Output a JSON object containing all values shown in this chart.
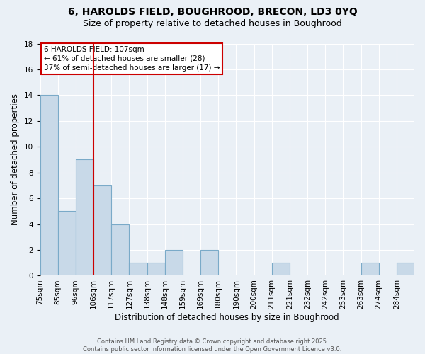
{
  "title_line1": "6, HAROLDS FIELD, BOUGHROOD, BRECON, LD3 0YQ",
  "title_line2": "Size of property relative to detached houses in Boughrood",
  "xlabel": "Distribution of detached houses by size in Boughrood",
  "ylabel": "Number of detached properties",
  "bin_labels": [
    "75sqm",
    "85sqm",
    "96sqm",
    "106sqm",
    "117sqm",
    "127sqm",
    "138sqm",
    "148sqm",
    "159sqm",
    "169sqm",
    "180sqm",
    "190sqm",
    "200sqm",
    "211sqm",
    "221sqm",
    "232sqm",
    "242sqm",
    "253sqm",
    "263sqm",
    "274sqm",
    "284sqm"
  ],
  "counts": [
    14,
    5,
    9,
    7,
    4,
    1,
    1,
    2,
    0,
    2,
    0,
    0,
    0,
    1,
    0,
    0,
    0,
    0,
    1,
    0,
    1
  ],
  "bar_color": "#c8d9e8",
  "bar_edge_color": "#7aaac8",
  "red_line_bin_index": 3,
  "annotation_text": "6 HAROLDS FIELD: 107sqm\n← 61% of detached houses are smaller (28)\n37% of semi-detached houses are larger (17) →",
  "annotation_box_color": "#ffffff",
  "annotation_border_color": "#cc0000",
  "ylim": [
    0,
    18
  ],
  "yticks": [
    0,
    2,
    4,
    6,
    8,
    10,
    12,
    14,
    16,
    18
  ],
  "background_color": "#eaf0f6",
  "grid_color": "#ffffff",
  "footer_text": "Contains HM Land Registry data © Crown copyright and database right 2025.\nContains public sector information licensed under the Open Government Licence v3.0.",
  "title_fontsize": 10,
  "subtitle_fontsize": 9,
  "xlabel_fontsize": 8.5,
  "ylabel_fontsize": 8.5,
  "tick_fontsize": 7.5,
  "annotation_fontsize": 7.5,
  "footer_fontsize": 6.0
}
